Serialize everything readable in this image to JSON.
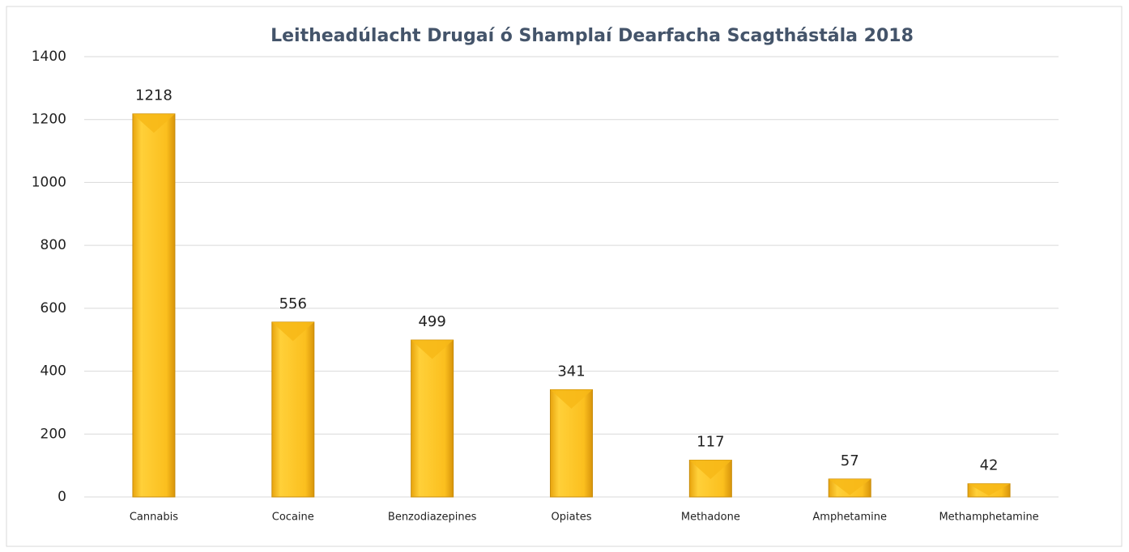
{
  "chart_data": {
    "type": "bar",
    "title": "Leitheadúlacht Drugaí ó Shamplaí Dearfacha Scagthástála 2018",
    "categories": [
      "Cannabis",
      "Cocaine",
      "Benzodiazepines",
      "Opiates",
      "Methadone",
      "Amphetamine",
      "Methamphetamine"
    ],
    "values": [
      1218,
      556,
      499,
      341,
      117,
      57,
      42
    ],
    "color": "#f7b817",
    "ylim": [
      0,
      1400
    ],
    "yticks": [
      0,
      200,
      400,
      600,
      800,
      1000,
      1200,
      1400
    ],
    "grid": true
  }
}
